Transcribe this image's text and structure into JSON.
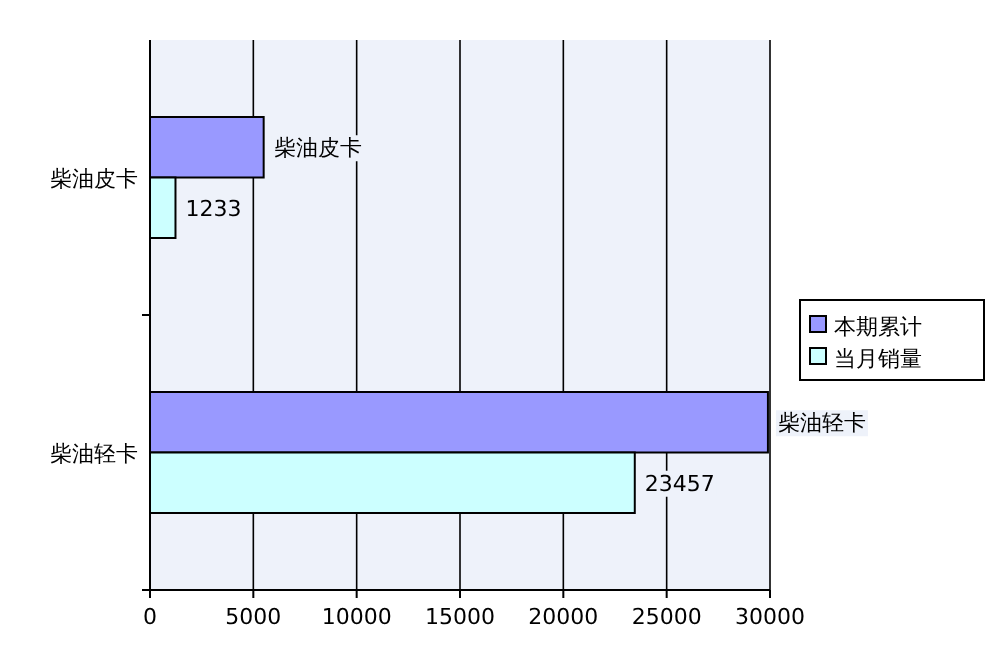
{
  "chart_data": {
    "type": "bar",
    "orientation": "horizontal",
    "categories": [
      "柴油皮卡",
      "柴油轻卡"
    ],
    "series": [
      {
        "name": "本期累计",
        "color": "#9999ff",
        "values": [
          5500,
          29900
        ],
        "value_labels": [
          "柴油皮卡",
          "柴油轻卡"
        ]
      },
      {
        "name": "当月销量",
        "color": "#ccffff",
        "values": [
          1233,
          23457
        ],
        "value_labels": [
          "1233",
          "23457"
        ]
      }
    ],
    "xlim": [
      0,
      30000
    ],
    "xticks": [
      0,
      5000,
      10000,
      15000,
      20000,
      25000,
      30000
    ],
    "grid": "x",
    "legend": "right"
  }
}
